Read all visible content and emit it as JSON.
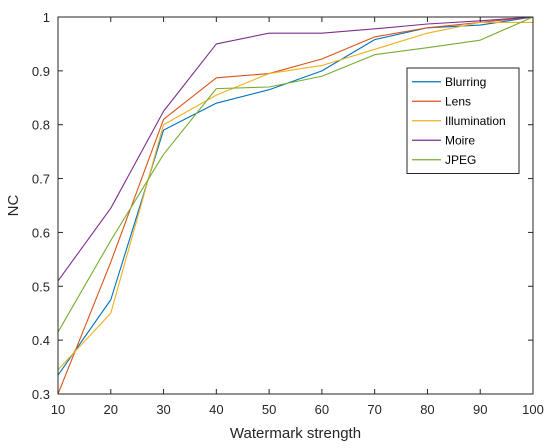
{
  "chart_data": {
    "type": "line",
    "title": "",
    "xlabel": "Watermark strength",
    "ylabel": "NC",
    "x": [
      10,
      20,
      30,
      40,
      50,
      60,
      70,
      80,
      90,
      100
    ],
    "xlim": [
      10,
      100
    ],
    "ylim": [
      0.3,
      1.0
    ],
    "xticks": [
      "10",
      "20",
      "30",
      "40",
      "50",
      "60",
      "70",
      "80",
      "90",
      "100"
    ],
    "yticks": [
      "0.3",
      "0.4",
      "0.5",
      "0.6",
      "0.7",
      "0.8",
      "0.9",
      "1"
    ],
    "grid": false,
    "legend_position": "upper-right",
    "series": [
      {
        "name": "Blurring",
        "color": "#0072BD",
        "values": [
          0.335,
          0.475,
          0.79,
          0.84,
          0.865,
          0.9,
          0.958,
          0.98,
          0.985,
          1.0
        ]
      },
      {
        "name": "Lens",
        "color": "#D95319",
        "values": [
          0.3,
          0.545,
          0.81,
          0.887,
          0.895,
          0.922,
          0.963,
          0.98,
          0.99,
          1.0
        ]
      },
      {
        "name": "Illumination",
        "color": "#EDB120",
        "values": [
          0.345,
          0.45,
          0.8,
          0.855,
          0.895,
          0.91,
          0.94,
          0.97,
          0.99,
          0.99
        ]
      },
      {
        "name": "Moire",
        "color": "#7E2F8E",
        "values": [
          0.51,
          0.645,
          0.825,
          0.95,
          0.97,
          0.97,
          0.978,
          0.987,
          0.993,
          1.0
        ]
      },
      {
        "name": "JPEG",
        "color": "#77AC30",
        "values": [
          0.415,
          0.585,
          0.745,
          0.867,
          0.87,
          0.89,
          0.93,
          0.943,
          0.957,
          1.0
        ]
      }
    ]
  }
}
